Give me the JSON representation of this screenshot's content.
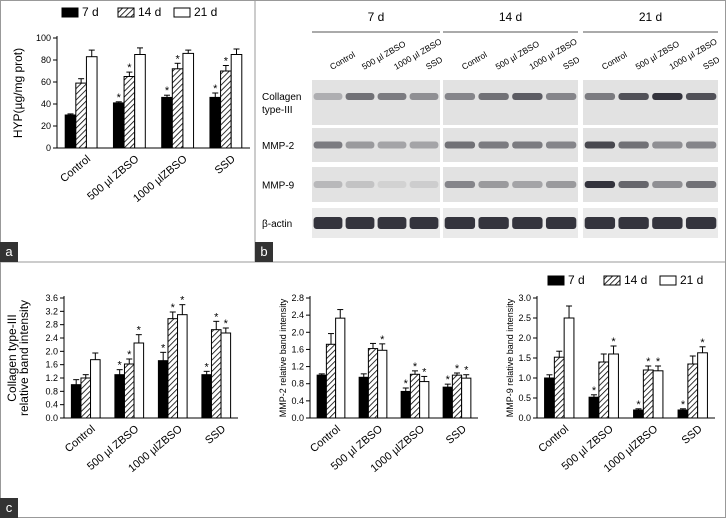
{
  "chart_data": [
    {
      "type": "bar",
      "panel": "a",
      "ylabel": [
        "HYP(µg/mg prot)"
      ],
      "legend": "top",
      "categories": [
        "Control",
        "500 µl ZBSO",
        "1000 µlZBSO",
        "SSD"
      ],
      "ylim": [
        0,
        100
      ],
      "yticks": [
        0,
        20,
        40,
        60,
        80,
        100
      ],
      "series": [
        {
          "name": "7 d",
          "color": "#000000",
          "fill": "solid",
          "values": [
            30,
            41,
            46,
            46
          ],
          "errors": [
            1,
            1,
            2,
            4
          ],
          "markers": [
            null,
            "*",
            "*",
            "*"
          ]
        },
        {
          "name": "14 d",
          "color": "#000000",
          "fill": "hatch",
          "values": [
            59,
            65,
            72,
            70
          ],
          "errors": [
            4,
            4,
            5,
            5
          ],
          "markers": [
            null,
            "*",
            "*",
            "*"
          ]
        },
        {
          "name": "21 d",
          "color": "#000000",
          "fill": "open",
          "values": [
            83,
            85,
            86,
            85
          ],
          "errors": [
            6,
            6,
            3,
            5
          ],
          "markers": [
            null,
            null,
            null,
            null
          ]
        }
      ]
    },
    {
      "type": "bar",
      "panel": "c",
      "ylabel": [
        "Collagen type-III",
        "relative band intensity"
      ],
      "legend": false,
      "categories": [
        "Control",
        "500 µl ZBSO",
        "1000 µlZBSO",
        "SSD"
      ],
      "ylim": [
        0,
        3.6
      ],
      "yticks": [
        {
          "value": 0,
          "label": "0.0"
        },
        0.4,
        0.8,
        1.2,
        1.6,
        {
          "value": 2,
          "label": "2.0"
        },
        2.4,
        2.8,
        3.2,
        3.6
      ],
      "series": [
        {
          "name": "7 d",
          "color": "#000000",
          "fill": "solid",
          "values": [
            1.0,
            1.3,
            1.72,
            1.3
          ],
          "errors": [
            0.15,
            0.15,
            0.25,
            0.1
          ],
          "markers": [
            null,
            "*",
            "*",
            "*"
          ]
        },
        {
          "name": "14 d",
          "color": "#000000",
          "fill": "hatch",
          "values": [
            1.2,
            1.62,
            2.98,
            2.65
          ],
          "errors": [
            0.1,
            0.15,
            0.2,
            0.25
          ],
          "markers": [
            null,
            "*",
            "*",
            "*"
          ]
        },
        {
          "name": "21 d",
          "color": "#000000",
          "fill": "open",
          "values": [
            1.75,
            2.25,
            3.1,
            2.55
          ],
          "errors": [
            0.2,
            0.25,
            0.3,
            0.15
          ],
          "markers": [
            null,
            "*",
            "*",
            "*"
          ]
        }
      ]
    },
    {
      "type": "bar",
      "ylabel": [
        "MMP-2 relative band intensity"
      ],
      "legend": false,
      "categories": [
        "Control",
        "500 µl ZBSO",
        "1000 µlZBSO",
        "SSD"
      ],
      "ylim": [
        0,
        2.8
      ],
      "yticks": [
        {
          "value": 0,
          "label": "0.0"
        },
        0.4,
        0.8,
        1.2,
        1.6,
        {
          "value": 2,
          "label": "2.0"
        },
        2.4,
        2.8
      ],
      "series": [
        {
          "name": "7 d",
          "color": "#000000",
          "fill": "solid",
          "values": [
            1.0,
            0.95,
            0.62,
            0.72
          ],
          "errors": [
            0.03,
            0.08,
            0.08,
            0.07
          ],
          "markers": [
            null,
            null,
            "*",
            "*"
          ]
        },
        {
          "name": "14 d",
          "color": "#000000",
          "fill": "hatch",
          "values": [
            1.72,
            1.62,
            1.02,
            1.0
          ],
          "errors": [
            0.25,
            0.12,
            0.08,
            0.05
          ],
          "markers": [
            null,
            null,
            "*",
            "*"
          ]
        },
        {
          "name": "21 d",
          "color": "#000000",
          "fill": "open",
          "values": [
            2.33,
            1.58,
            0.85,
            0.93
          ],
          "errors": [
            0.2,
            0.15,
            0.12,
            0.08
          ],
          "markers": [
            null,
            "*",
            "*",
            "*"
          ]
        }
      ]
    },
    {
      "type": "bar",
      "ylabel": [
        "MMP-9 relative band intensity"
      ],
      "legend": "top",
      "categories": [
        "Control",
        "500 µl ZBSO",
        "1000 µlZBSO",
        "SSD"
      ],
      "ylim": [
        0,
        3.0
      ],
      "yticks": [
        {
          "value": 0,
          "label": "0.0"
        },
        0.5,
        {
          "value": 1,
          "label": "1.0"
        },
        1.5,
        {
          "value": 2,
          "label": "2.0"
        },
        2.5,
        {
          "value": 3,
          "label": "3.0"
        }
      ],
      "series": [
        {
          "name": "7 d",
          "color": "#000000",
          "fill": "solid",
          "values": [
            1.0,
            0.52,
            0.2,
            0.2
          ],
          "errors": [
            0.08,
            0.06,
            0.03,
            0.03
          ],
          "markers": [
            null,
            "*",
            "*",
            "*"
          ]
        },
        {
          "name": "14 d",
          "color": "#000000",
          "fill": "hatch",
          "values": [
            1.52,
            1.4,
            1.2,
            1.35
          ],
          "errors": [
            0.15,
            0.2,
            0.1,
            0.2
          ],
          "markers": [
            null,
            null,
            "*",
            null
          ]
        },
        {
          "name": "21 d",
          "color": "#000000",
          "fill": "open",
          "values": [
            2.5,
            1.6,
            1.18,
            1.63
          ],
          "errors": [
            0.3,
            0.2,
            0.12,
            0.15
          ],
          "markers": [
            null,
            "*",
            "*",
            "*"
          ]
        }
      ]
    }
  ],
  "blot": {
    "panel": "b",
    "groups": [
      "7 d",
      "14 d",
      "21 d"
    ],
    "lanes": [
      "Control",
      "500 µl ZBSO",
      "1000 µl ZBSO",
      "SSD"
    ],
    "rows": [
      [
        "Collagen",
        "type-III"
      ],
      [
        "MMP-2"
      ],
      [
        "MMP-9"
      ],
      [
        "β-actin"
      ]
    ]
  }
}
